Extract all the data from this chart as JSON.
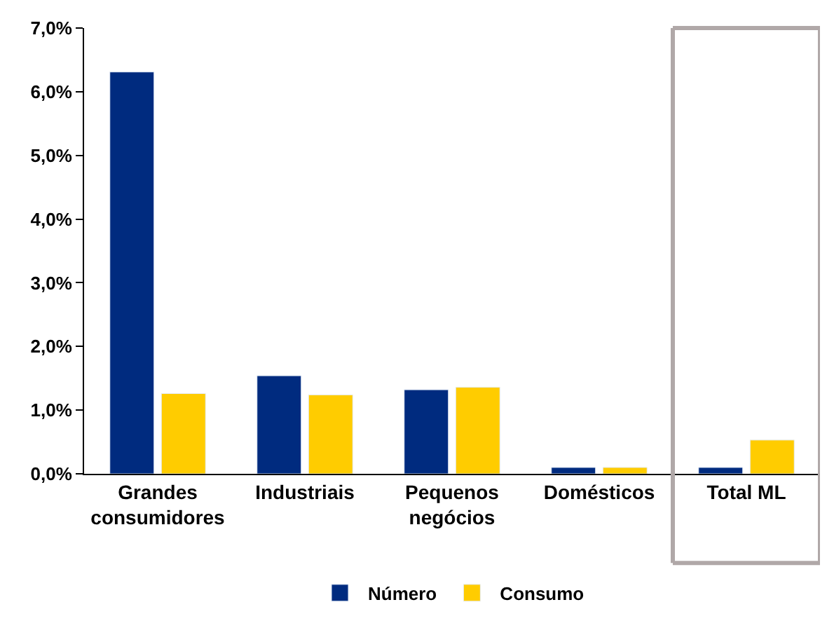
{
  "chart_data": {
    "type": "bar",
    "categories": [
      "Grandes consumidores",
      "Industriais",
      "Pequenos negócios",
      "Domésticos",
      "Total ML"
    ],
    "series": [
      {
        "name": "Número",
        "color": "#002b7f",
        "values": [
          6.31,
          1.54,
          1.32,
          0.1,
          0.1
        ]
      },
      {
        "name": "Consumo",
        "color": "#ffcc00",
        "values": [
          1.26,
          1.24,
          1.36,
          0.1,
          0.53
        ]
      }
    ],
    "ylim": [
      0,
      7
    ],
    "yticks": [
      {
        "value": 0,
        "label": "0,0%"
      },
      {
        "value": 1,
        "label": "1,0%"
      },
      {
        "value": 2,
        "label": "2,0%"
      },
      {
        "value": 3,
        "label": "3,0%"
      },
      {
        "value": 4,
        "label": "4,0%"
      },
      {
        "value": 5,
        "label": "5,0%"
      },
      {
        "value": 6,
        "label": "6,0%"
      },
      {
        "value": 7,
        "label": "7,0%"
      }
    ],
    "grid": false,
    "legend": "bottom"
  }
}
